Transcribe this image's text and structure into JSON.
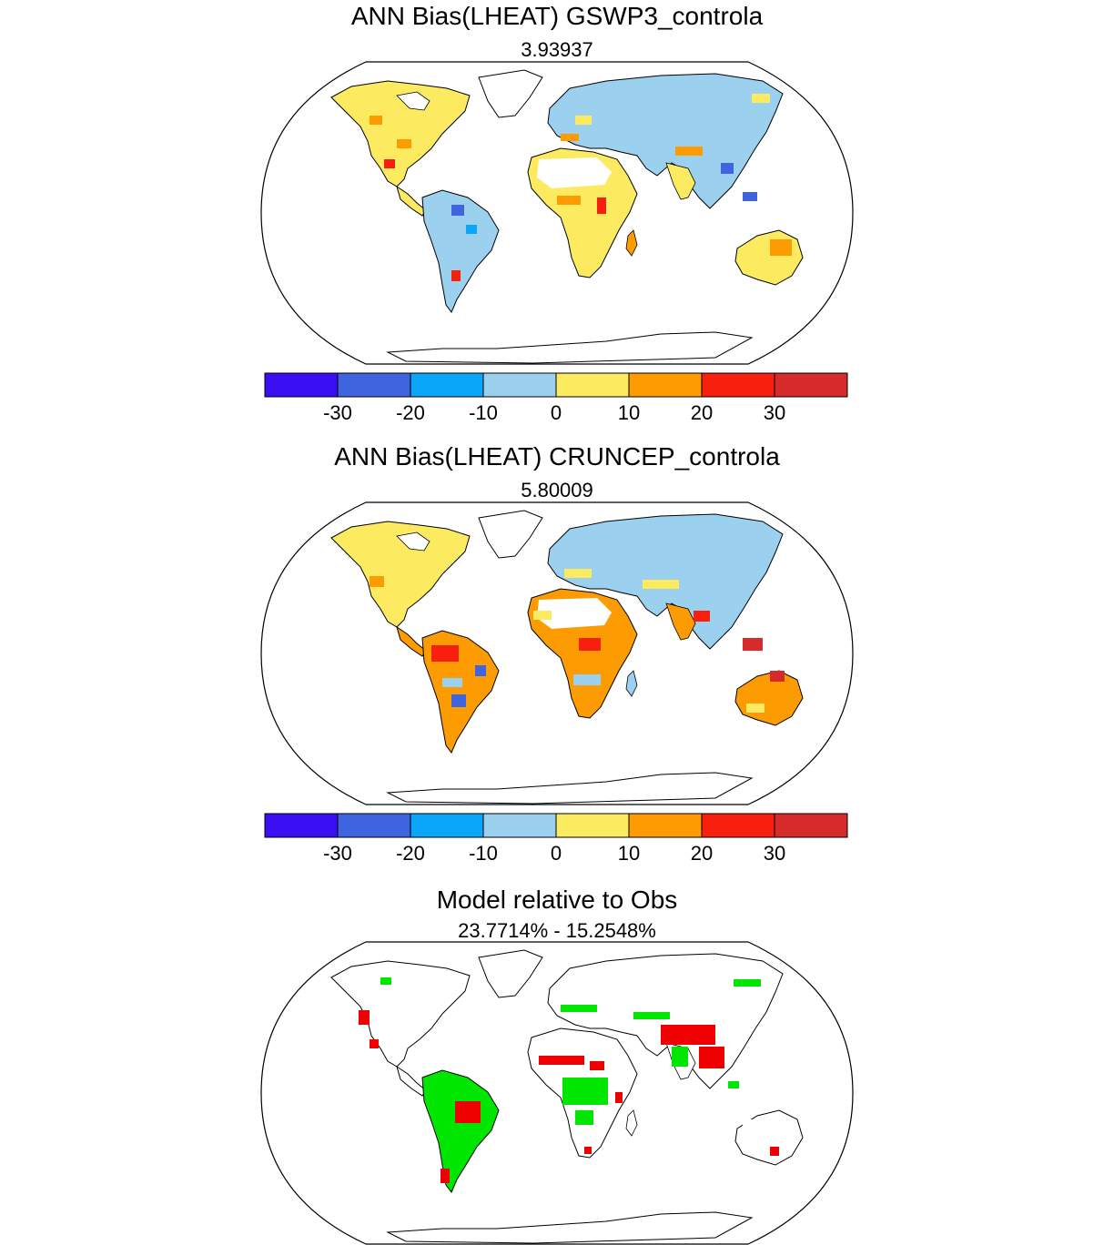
{
  "panels": [
    {
      "title": "ANN Bias(LHEAT) GSWP3_controla",
      "subtitle": "3.93937",
      "colorbar": {
        "ticks": [
          "-30",
          "-20",
          "-10",
          "0",
          "10",
          "20",
          "30"
        ],
        "colors": [
          "#3a10f2",
          "#3f64e0",
          "#0aa6f7",
          "#9bd0ee",
          "#fceb60",
          "#fd9b03",
          "#f7200f",
          "#d62b2b"
        ]
      }
    },
    {
      "title": "ANN Bias(LHEAT) CRUNCEP_controla",
      "subtitle": "5.80009",
      "colorbar": {
        "ticks": [
          "-30",
          "-20",
          "-10",
          "0",
          "10",
          "20",
          "30"
        ],
        "colors": [
          "#3a10f2",
          "#3f64e0",
          "#0aa6f7",
          "#9bd0ee",
          "#fceb60",
          "#fd9b03",
          "#f7200f",
          "#d62b2b"
        ]
      }
    },
    {
      "title": "Model relative to Obs",
      "subtitle": "23.7714% - 15.2548%",
      "colors": [
        "#00e600",
        "#ee0000"
      ]
    }
  ]
}
